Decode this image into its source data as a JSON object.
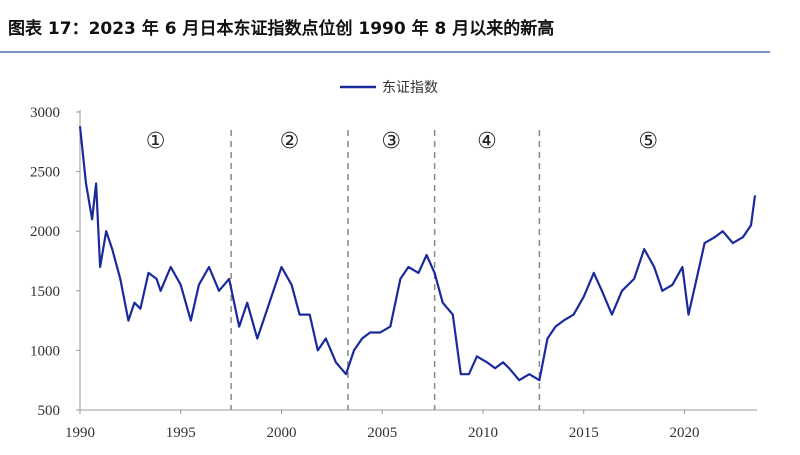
{
  "chart_data": {
    "type": "line",
    "title": "图表 17：2023 年 6 月日本东证指数点位创 1990 年 8 月以来的新高",
    "x": [
      1990.0,
      1990.3,
      1990.6,
      1990.8,
      1991.0,
      1991.3,
      1991.6,
      1992.0,
      1992.4,
      1992.7,
      1993.0,
      1993.4,
      1993.8,
      1994.0,
      1994.5,
      1995.0,
      1995.5,
      1995.9,
      1996.4,
      1996.9,
      1997.4,
      1997.9,
      1998.3,
      1998.8,
      1999.2,
      1999.6,
      2000.0,
      2000.5,
      2000.9,
      2001.4,
      2001.8,
      2002.2,
      2002.7,
      2003.2,
      2003.6,
      2004.0,
      2004.4,
      2004.9,
      2005.4,
      2005.9,
      2006.3,
      2006.8,
      2007.2,
      2007.6,
      2008.0,
      2008.5,
      2008.9,
      2009.3,
      2009.7,
      2010.2,
      2010.6,
      2011.0,
      2011.3,
      2011.8,
      2012.3,
      2012.8,
      2013.2,
      2013.6,
      2014.0,
      2014.5,
      2015.0,
      2015.5,
      2015.9,
      2016.4,
      2016.9,
      2017.5,
      2018.0,
      2018.5,
      2018.9,
      2019.4,
      2019.9,
      2020.2,
      2020.6,
      2021.0,
      2021.5,
      2021.9,
      2022.4,
      2022.9,
      2023.3,
      2023.5
    ],
    "series": [
      {
        "name": "东证指数",
        "color": "#1a2a9c",
        "values": [
          2880,
          2400,
          2100,
          2400,
          1700,
          2000,
          1850,
          1600,
          1250,
          1400,
          1350,
          1650,
          1600,
          1500,
          1700,
          1550,
          1250,
          1550,
          1700,
          1500,
          1600,
          1200,
          1400,
          1100,
          1300,
          1500,
          1700,
          1550,
          1300,
          1300,
          1000,
          1100,
          900,
          800,
          1000,
          1100,
          1150,
          1150,
          1200,
          1600,
          1700,
          1650,
          1800,
          1650,
          1400,
          1300,
          800,
          800,
          950,
          900,
          850,
          900,
          850,
          750,
          800,
          750,
          1100,
          1200,
          1250,
          1300,
          1450,
          1650,
          1500,
          1300,
          1500,
          1600,
          1850,
          1700,
          1500,
          1550,
          1700,
          1300,
          1600,
          1900,
          1950,
          2000,
          1900,
          1950,
          2050,
          2300
        ]
      }
    ],
    "xlim": [
      1990,
      2023.6
    ],
    "xticks": [
      1990,
      1995,
      2000,
      2005,
      2010,
      2015,
      2020
    ],
    "ylim": [
      500,
      3000
    ],
    "yticks": [
      500,
      1000,
      1500,
      2000,
      2500,
      3000
    ],
    "dividers": [
      1997.5,
      2003.3,
      2007.6,
      2012.8
    ],
    "annotations": [
      "①",
      "②",
      "③",
      "④",
      "⑤"
    ],
    "legend": "top"
  }
}
